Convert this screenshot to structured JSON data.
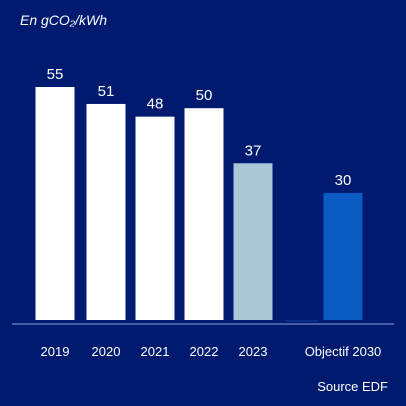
{
  "chart_data": {
    "type": "bar",
    "unit_label": "En gCO₂/kWh",
    "categories": [
      "2019",
      "2020",
      "2021",
      "2022",
      "2023",
      "Objectif 2030"
    ],
    "values": [
      55,
      51,
      48,
      50,
      37,
      30
    ],
    "bar_colors": [
      "#ffffff",
      "#ffffff",
      "#ffffff",
      "#ffffff",
      "#a9c6d6",
      "#0a5cc2"
    ],
    "ylim": [
      0,
      60
    ],
    "grid": false,
    "source": "Source EDF"
  },
  "colors": {
    "background": "#001a70",
    "axis": "#8fa3d6",
    "text": "#ffffff"
  }
}
